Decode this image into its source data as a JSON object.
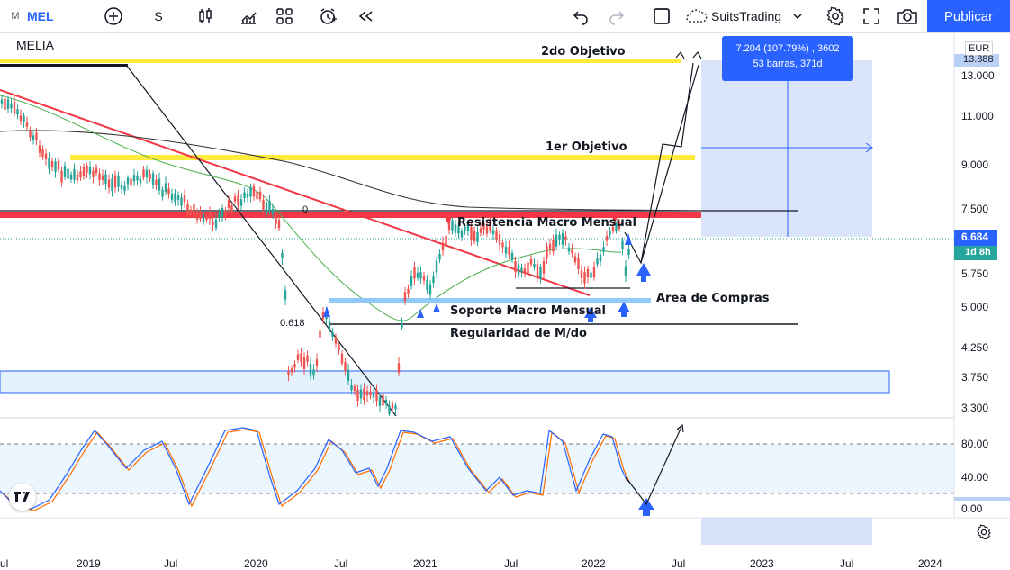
{
  "toolbar": {
    "symbol_prefix": "M",
    "symbol": "MEL",
    "interval": "S",
    "layout_name": "SuitsTrading",
    "publish_label": "Publicar"
  },
  "chart": {
    "legend_title": "MELIA",
    "currency": "EUR",
    "last_price": "6.684",
    "countdown": "1d 8h",
    "top_price_partial": "13.888",
    "y_labels": [
      "13.000",
      "11.000",
      "9.000",
      "7.500",
      "5.750",
      "5.000",
      "4.250",
      "3.750",
      "3.300"
    ],
    "x_labels": [
      "ul",
      "2019",
      "Jul",
      "2020",
      "Jul",
      "2021",
      "Jul",
      "2022",
      "Jul",
      "2023",
      "Jul",
      "2024"
    ],
    "annotations": {
      "objective2": "2do Objetivo",
      "objective1": "1er Objetivo",
      "resistance": "Resistencia Macro Mensual",
      "buy_area": "Area de Compras",
      "support": "Soporte Macro Mensual",
      "regularity": "Regularidad de M/do",
      "fib0": "0",
      "fib618": "0.618"
    },
    "measure": {
      "line1": "7.204 (107.79%) , 3602",
      "line2": "53 barras, 371d"
    },
    "osc_labels": [
      "80.00",
      "40.00",
      "0.00"
    ],
    "colors": {
      "yellow": "#ffeb3b",
      "red_band": "#f23645",
      "accent": "#2962ff",
      "osc_blue": "#2962ff",
      "osc_orange": "#ff6d00"
    }
  }
}
